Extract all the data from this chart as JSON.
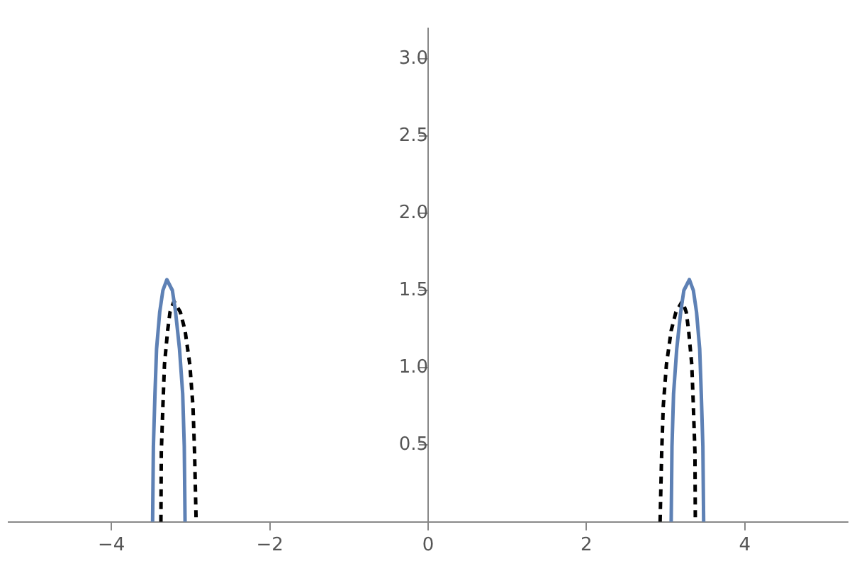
{
  "chart_data": {
    "type": "line",
    "xlim": [
      -5.3,
      5.3
    ],
    "ylim": [
      0,
      3.2
    ],
    "xticks": [
      {
        "value": -4,
        "label": "−4"
      },
      {
        "value": -2,
        "label": "−2"
      },
      0,
      2,
      4
    ],
    "yticks": [
      {
        "value": 0.5,
        "label": "0.5"
      },
      {
        "value": 1,
        "label": "1.0"
      },
      {
        "value": 1.5,
        "label": "1.5"
      },
      {
        "value": 2,
        "label": "2.0"
      },
      {
        "value": 2.5,
        "label": "2.5"
      },
      {
        "value": 3,
        "label": "3.0"
      }
    ],
    "grid": false,
    "legend": false,
    "marker": "none",
    "series": [
      {
        "color": "#5e81b5",
        "line_style": "solid",
        "x": [
          -3.48,
          -3.47,
          -3.45,
          -3.43,
          -3.39,
          -3.35,
          -3.3,
          -3.23,
          -3.19,
          -3.14,
          -3.1,
          -3.08,
          -3.07
        ],
        "values": [
          0,
          0.49,
          0.83,
          1.12,
          1.36,
          1.5,
          1.57,
          1.5,
          1.36,
          1.12,
          0.83,
          0.49,
          0
        ]
      },
      {
        "color": "#000000",
        "line_style": "dashed",
        "x": [
          -3.375,
          -3.37,
          -3.35,
          -3.33,
          -3.29,
          -3.26,
          -3.21,
          -3.13,
          -3.07,
          -3.01,
          -2.97,
          -2.95,
          -2.93
        ],
        "values": [
          0,
          0.45,
          0.75,
          1.02,
          1.24,
          1.36,
          1.43,
          1.36,
          1.24,
          1.02,
          0.75,
          0.45,
          0
        ]
      },
      {
        "color": "#5e81b5",
        "line_style": "solid",
        "x": [
          3.07,
          3.08,
          3.1,
          3.14,
          3.19,
          3.23,
          3.3,
          3.35,
          3.39,
          3.43,
          3.45,
          3.47,
          3.48
        ],
        "values": [
          0,
          0.49,
          0.83,
          1.12,
          1.36,
          1.5,
          1.57,
          1.5,
          1.36,
          1.12,
          0.83,
          0.49,
          0
        ]
      },
      {
        "color": "#000000",
        "line_style": "dashed",
        "x": [
          2.93,
          2.95,
          2.97,
          3.01,
          3.07,
          3.13,
          3.21,
          3.26,
          3.29,
          3.33,
          3.35,
          3.37,
          3.375
        ],
        "values": [
          0,
          0.45,
          0.75,
          1.02,
          1.24,
          1.36,
          1.43,
          1.36,
          1.24,
          1.02,
          0.75,
          0.45,
          0
        ]
      }
    ]
  }
}
